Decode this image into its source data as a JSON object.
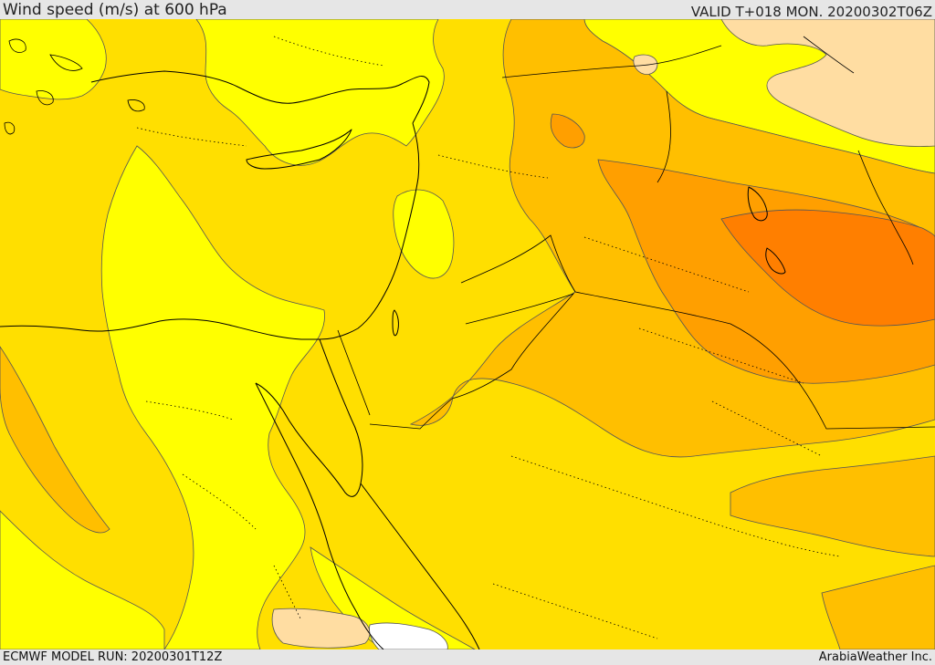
{
  "header": {
    "title": "Wind speed (m/s) at 600 hPa",
    "valid": "VALID T+018 MON. 20200302T06Z"
  },
  "footer": {
    "model_run": "ECMWF MODEL RUN: 20200301T12Z",
    "credit": "ArabiaWeather Inc."
  },
  "map": {
    "field": "wind speed",
    "level": "600 hPa",
    "fill_colors": {
      "level_1": "#ffff00",
      "level_2": "#ffdf00",
      "level_3": "#ffbf00",
      "level_4": "#ff9f00",
      "level_5": "#ff7f00",
      "calm": "#ffdda2",
      "very_calm": "#ffffff"
    },
    "coastline_color": "#000000",
    "contour_color": "#555555"
  }
}
